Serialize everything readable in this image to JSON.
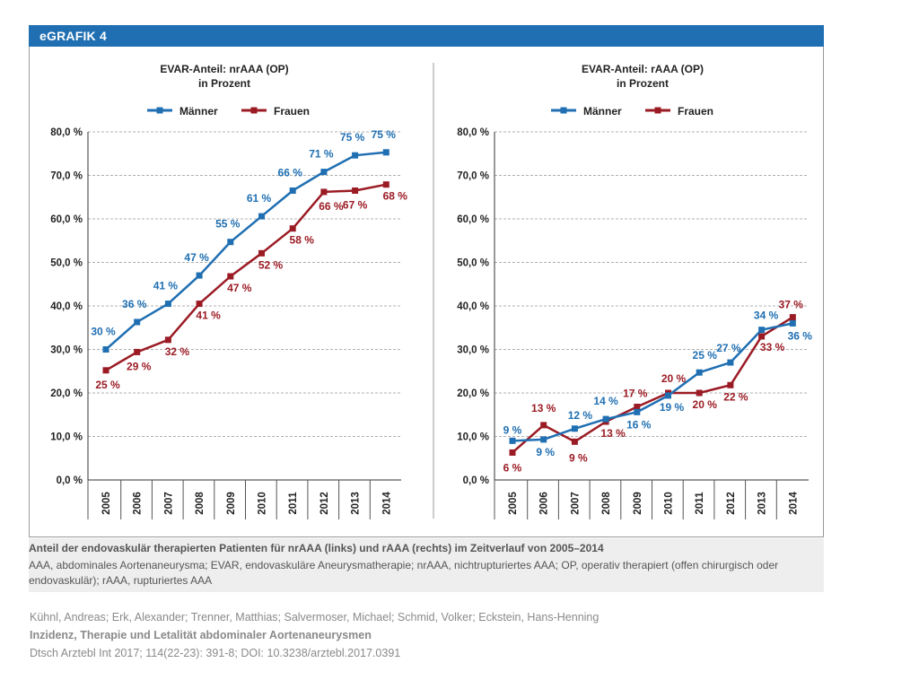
{
  "header": {
    "title": "eGRAFIK 4"
  },
  "colors": {
    "maenner": "#1f6fb2",
    "frauen": "#9b1b24",
    "grid": "#b0b0b0",
    "header": "#1f6fb2"
  },
  "chart_data": [
    {
      "type": "line",
      "title": "EVAR-Anteil: nrAAA (OP)",
      "subtitle": "in Prozent",
      "categories": [
        "2005",
        "2006",
        "2007",
        "2008",
        "2009",
        "2010",
        "2011",
        "2012",
        "2013",
        "2014"
      ],
      "ytick_labels": [
        "0,0 %",
        "10,0 %",
        "20,0 %",
        "30,0 %",
        "40,0 %",
        "50,0 %",
        "60,0 %",
        "70,0 %",
        "80,0 %"
      ],
      "ylim": [
        0,
        80
      ],
      "legend_position": "top-center",
      "series": [
        {
          "name": "Männer",
          "values": [
            30,
            36.3,
            40.5,
            47,
            54.7,
            60.6,
            66.5,
            70.8,
            74.6,
            75.3
          ],
          "labels": [
            "30 %",
            "36 %",
            "41 %",
            "47 %",
            "55 %",
            "61 %",
            "66 %",
            "71 %",
            "75 %",
            "75 %"
          ]
        },
        {
          "name": "Frauen",
          "values": [
            25.2,
            29.4,
            32.2,
            40.5,
            46.8,
            52.1,
            57.8,
            66.2,
            66.5,
            67.9
          ],
          "labels": [
            "25 %",
            "29 %",
            "32 %",
            "41 %",
            "47 %",
            "52 %",
            "58 %",
            "66 %",
            "67 %",
            "68 %"
          ]
        }
      ]
    },
    {
      "type": "line",
      "title": "EVAR-Anteil: rAAA (OP)",
      "subtitle": "in Prozent",
      "categories": [
        "2005",
        "2006",
        "2007",
        "2008",
        "2009",
        "2010",
        "2011",
        "2012",
        "2013",
        "2014"
      ],
      "ytick_labels": [
        "0,0 %",
        "10,0 %",
        "20,0 %",
        "30,0 %",
        "40,0 %",
        "50,0 %",
        "60,0 %",
        "70,0 %",
        "80,0 %"
      ],
      "ylim": [
        0,
        80
      ],
      "legend_position": "top-center",
      "series": [
        {
          "name": "Männer",
          "values": [
            9,
            9.3,
            11.8,
            14,
            15.6,
            19.4,
            24.7,
            27,
            34.5,
            36
          ],
          "labels": [
            "9 %",
            "9 %",
            "12 %",
            "14 %",
            "16 %",
            "19 %",
            "25 %",
            "27 %",
            "34 %",
            "36 %"
          ]
        },
        {
          "name": "Frauen",
          "values": [
            6.3,
            12.6,
            8.8,
            13.4,
            16.8,
            20,
            20,
            21.8,
            33,
            37.4
          ],
          "labels": [
            "6 %",
            "13 %",
            "9 %",
            "13 %",
            "17 %",
            "20 %",
            "20 %",
            "22 %",
            "33 %",
            "37 %"
          ]
        }
      ]
    }
  ],
  "caption": {
    "title": "Anteil der endovaskulär therapierten Patienten für nrAAA (links) und rAAA (rechts) im Zeitverlauf von 2005–2014",
    "text": "AAA, abdominales Aortenaneurysma; EVAR, endovaskuläre Aneurysmatherapie; nrAAA, nichtrupturiertes AAA; OP, operativ therapiert (offen chirurgisch oder endovaskulär); rAAA, rupturiertes AAA"
  },
  "citation": {
    "authors": "Kühnl, Andreas; Erk, Alexander; Trenner, Matthias; Salvermoser, Michael; Schmid, Volker; Eckstein, Hans-Henning",
    "title": "Inzidenz, Therapie und Letalität abdominaler Aortenaneurysmen",
    "source": "Dtsch Arztebl Int 2017; 114(22-23): 391-8; DOI: 10.3238/arztebl.2017.0391"
  }
}
